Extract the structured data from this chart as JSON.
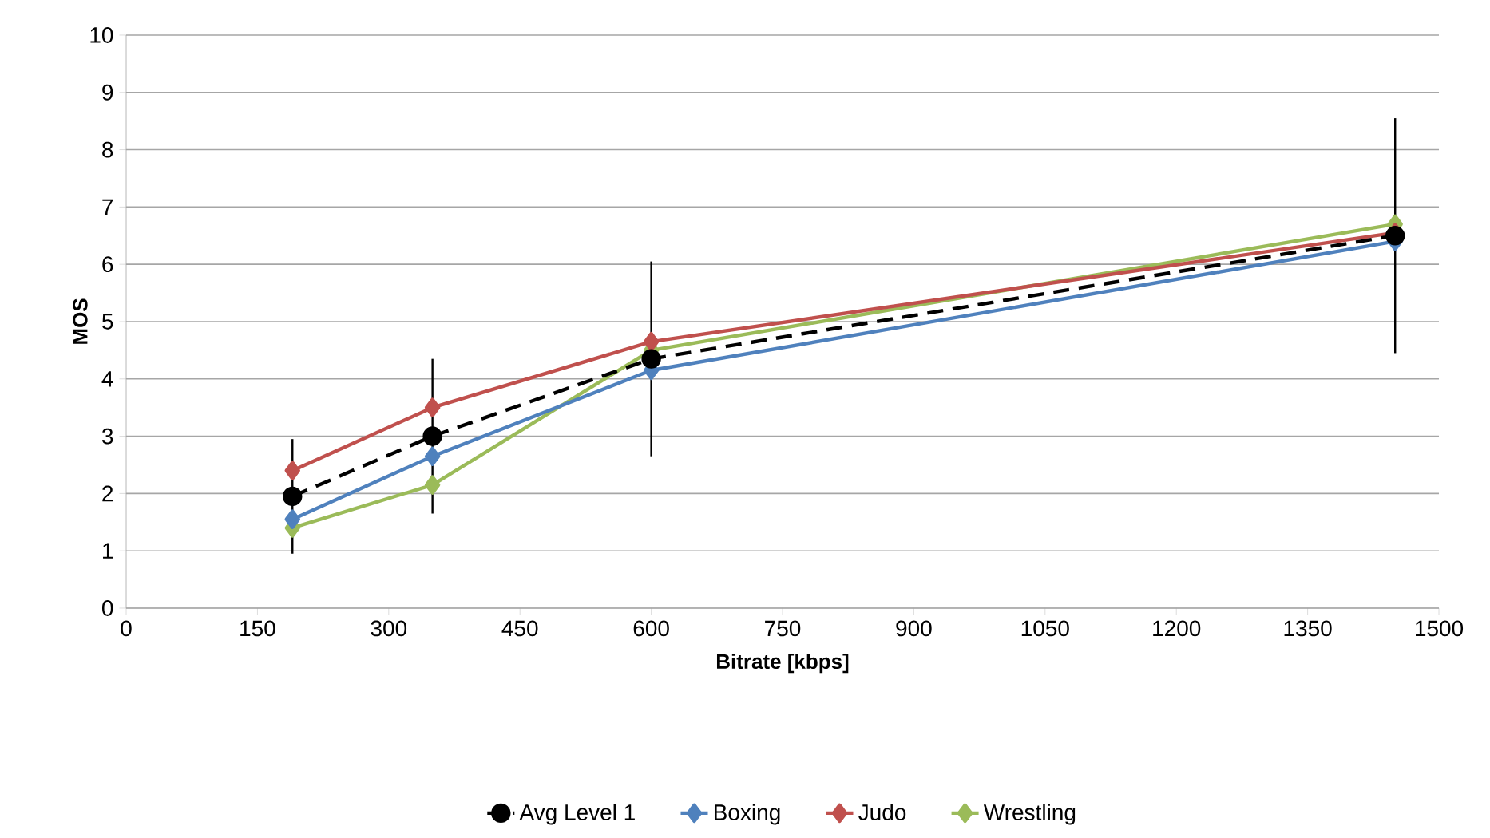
{
  "chart_data": {
    "type": "line",
    "xlabel": "Bitrate [kbps]",
    "ylabel": "MOS",
    "x": [
      190,
      350,
      600,
      1450
    ],
    "series": [
      {
        "name": "Avg Level 1",
        "color": "#000000",
        "values": [
          1.95,
          3.0,
          4.35,
          6.5
        ],
        "errors": [
          1.0,
          1.35,
          1.7,
          2.05
        ],
        "marker": "circle",
        "line_style": "dashed"
      },
      {
        "name": "Boxing",
        "color": "#4f81bd",
        "values": [
          1.55,
          2.65,
          4.15,
          6.4
        ],
        "marker": "diamond",
        "line_style": "solid"
      },
      {
        "name": "Judo",
        "color": "#c0504d",
        "values": [
          2.4,
          3.5,
          4.65,
          6.55
        ],
        "marker": "diamond",
        "line_style": "solid"
      },
      {
        "name": "Wrestling",
        "color": "#9bbb59",
        "values": [
          1.4,
          2.15,
          4.5,
          6.7
        ],
        "marker": "diamond",
        "line_style": "solid"
      }
    ],
    "xlim": [
      0,
      1500
    ],
    "xticks": [
      0,
      150,
      300,
      450,
      600,
      750,
      900,
      1050,
      1200,
      1350,
      1500
    ],
    "ylim": [
      0,
      10
    ],
    "yticks": [
      0,
      1,
      2,
      3,
      4,
      5,
      6,
      7,
      8,
      9,
      10
    ],
    "grid": "y",
    "legend": "bottom"
  }
}
